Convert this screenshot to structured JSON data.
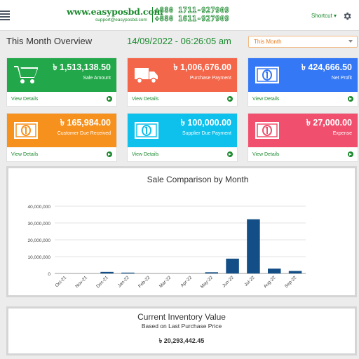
{
  "header": {
    "site": "www.easyposbd.com",
    "email": "support@easyposbd.com",
    "phone1": "+880 1711-927909",
    "phone2": "+880 1611-927909",
    "shortcut_label": "Shortcut",
    "brand_color": "#1b8a2e"
  },
  "overview": {
    "title": "This Month Overview",
    "datetime": "14/09/2022 - 06:26:05 am",
    "period_selected": "This Month"
  },
  "cards": [
    {
      "amount": "৳ 1,513,138.50",
      "label": "Sale Amount",
      "link": "View Details",
      "color": "#22a84a",
      "icon": "cart-icon"
    },
    {
      "amount": "৳ 1,006,676.00",
      "label": "Purchase Payment",
      "link": "View Details",
      "color": "#f4664a",
      "icon": "truck-icon"
    },
    {
      "amount": "৳ 424,666.50",
      "label": "Net Profit",
      "link": "View Details",
      "color": "#3578f6",
      "icon": "money-icon"
    },
    {
      "amount": "৳ 165,984.00",
      "label": "Customer Due Received",
      "link": "View Details",
      "color": "#f7911d",
      "icon": "money-icon"
    },
    {
      "amount": "৳ 100,000.00",
      "label": "Supplier Due Payment",
      "link": "View Details",
      "color": "#0ec0ec",
      "icon": "money-icon"
    },
    {
      "amount": "৳ 27,000.00",
      "label": "Expense",
      "link": "View Details",
      "color": "#f0506e",
      "icon": "money-icon"
    }
  ],
  "chart_data": {
    "type": "bar",
    "title": "Sale Comparison by Month",
    "categories": [
      "Oct-21",
      "Nov-21",
      "Dec-21",
      "Jan-22",
      "Feb-22",
      "Mar-22",
      "Apr-22",
      "May-22",
      "Jun-22",
      "Jul-22",
      "Aug-22",
      "Sep-22"
    ],
    "values": [
      0,
      0,
      900000,
      500000,
      0,
      0,
      0,
      700000,
      8800000,
      32200000,
      2900000,
      1500000
    ],
    "ylim": [
      0,
      40000000
    ],
    "yticks": [
      "0",
      "10,000,000",
      "20,000,000",
      "30,000,000",
      "40,000,000"
    ],
    "ytick_values": [
      0,
      10000000,
      20000000,
      30000000,
      40000000
    ],
    "bar_color": "#134f86",
    "grid": true,
    "legend": "none"
  },
  "inventory": {
    "title": "Current Inventory Value",
    "subtitle": "Based on Last Purchase Price",
    "value": "৳ 20,293,442.45"
  }
}
